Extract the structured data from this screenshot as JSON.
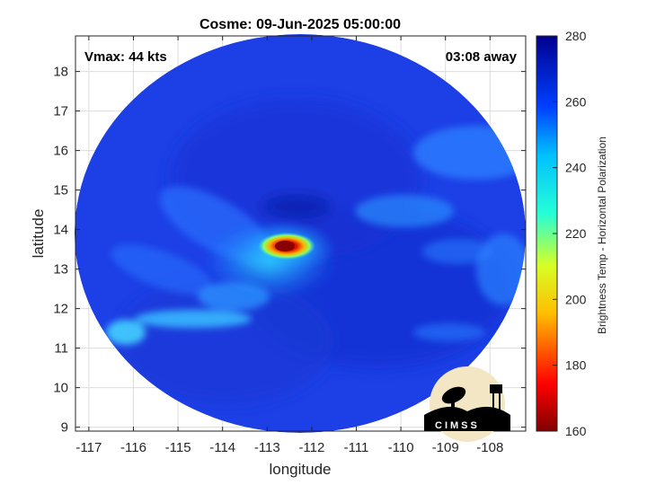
{
  "title": "Cosme: 09-Jun-2025 05:00:00",
  "vmax": "Vmax: 44 kts",
  "eta": "03:08 away",
  "xlabel": "longitude",
  "ylabel": "latitude",
  "xticks": [
    "-117",
    "-116",
    "-115",
    "-114",
    "-113",
    "-112",
    "-111",
    "-110",
    "-109",
    "-108"
  ],
  "yticks": [
    "9",
    "10",
    "11",
    "12",
    "13",
    "14",
    "15",
    "16",
    "17",
    "18"
  ],
  "colorbar": {
    "label": "Brightness Temp - Horizontal Polarization",
    "ticks": [
      "160",
      "180",
      "200",
      "220",
      "240",
      "260",
      "280"
    ],
    "range": [
      160,
      280
    ]
  },
  "logo": {
    "text": "CIMSS"
  },
  "colors": {
    "background_field": "#1a3ee8",
    "accent_cold": "#7a0000",
    "accent_warm": "#ff2a00"
  },
  "chart_data": {
    "type": "heatmap",
    "title": "Cosme: 09-Jun-2025 05:00:00",
    "xlabel": "longitude",
    "ylabel": "latitude",
    "xlim": [
      -117.3,
      -107.2
    ],
    "ylim": [
      8.9,
      18.9
    ],
    "color_range": [
      160,
      280
    ],
    "colorbar_label": "Brightness Temp - Horizontal Polarization",
    "center": {
      "lon": -112.7,
      "lat": 13.65
    },
    "coldest_approx": 168
  }
}
